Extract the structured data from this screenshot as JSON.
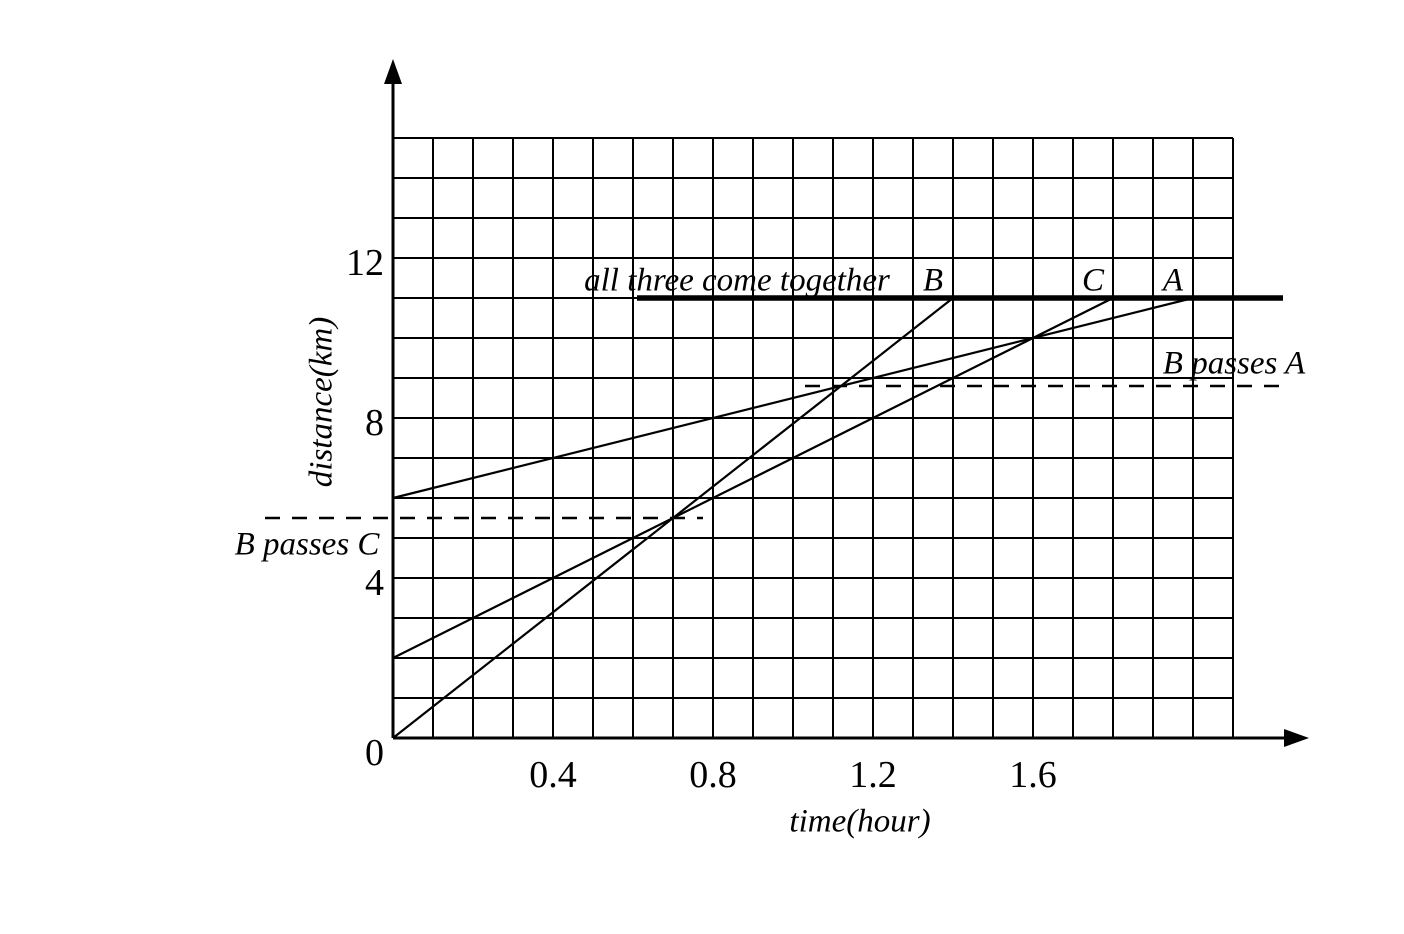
{
  "figure": {
    "background": "#ffffff",
    "ink_color": "#000000"
  },
  "chart_data": {
    "type": "line",
    "title": "",
    "xlabel": "time(hour)",
    "ylabel": "distance(km)",
    "xlim": [
      0,
      2.1
    ],
    "ylim": [
      0,
      15
    ],
    "grid": {
      "show": true,
      "x_step": 0.1,
      "y_step": 1
    },
    "origin_label": "0",
    "x_tick_values": [
      0.4,
      0.8,
      1.2,
      1.6
    ],
    "x_tick_labels": [
      "0.4",
      "0.8",
      "1.2",
      "1.6"
    ],
    "y_tick_values": [
      4,
      8,
      12
    ],
    "y_tick_labels": [
      "4",
      "8",
      "12"
    ],
    "series": [
      {
        "name": "B",
        "label": "B",
        "points": [
          [
            0,
            0
          ],
          [
            1.4,
            11
          ]
        ]
      },
      {
        "name": "C",
        "label": "C",
        "points": [
          [
            0,
            2
          ],
          [
            1.8,
            11
          ]
        ]
      },
      {
        "name": "A",
        "label": "A",
        "points": [
          [
            0,
            6
          ],
          [
            2.0,
            11
          ]
        ]
      }
    ],
    "meeting_line": {
      "label": "all three come together",
      "distance_km": 11,
      "t_from": 0.61,
      "t_to": 2.225
    },
    "events": [
      {
        "label": "B passes C",
        "time_hr": 0.7,
        "distance_km": 5.5,
        "dash_t_from": -0.32,
        "dash_t_to": 0.775
      },
      {
        "label": "B passes A",
        "time_hr": 1.12,
        "distance_km": 8.8,
        "dash_t_from": 1.03,
        "dash_t_to": 2.2425
      }
    ]
  }
}
